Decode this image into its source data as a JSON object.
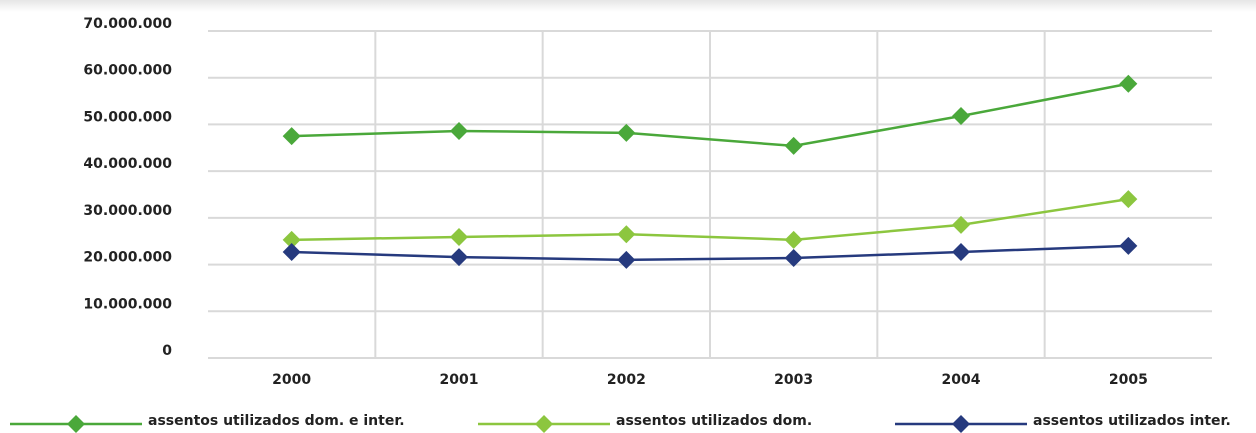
{
  "chart_data": {
    "type": "line",
    "categories": [
      "2000",
      "2001",
      "2002",
      "2003",
      "2004",
      "2005"
    ],
    "series": [
      {
        "name": "assentos utilizados dom. e inter.",
        "color": "#4aa83a",
        "values": [
          47500000,
          48600000,
          48200000,
          45400000,
          51800000,
          58700000
        ]
      },
      {
        "name": "assentos utilizados dom.",
        "color": "#8cc63f",
        "values": [
          25300000,
          25900000,
          26500000,
          25300000,
          28500000,
          34000000
        ]
      },
      {
        "name": "assentos utilizados inter.",
        "color": "#263a7e",
        "values": [
          22700000,
          21600000,
          21000000,
          21400000,
          22700000,
          24000000
        ]
      }
    ],
    "ylim": [
      0,
      70000000
    ],
    "yticks": [
      0,
      {
        "value": 10000000,
        "label": "10.000.000"
      },
      {
        "value": 20000000,
        "label": "20.000.000"
      },
      {
        "value": 30000000,
        "label": "30.000.000"
      },
      {
        "value": 40000000,
        "label": "40.000.000"
      },
      {
        "value": 50000000,
        "label": "50.000.000"
      },
      {
        "value": 60000000,
        "label": "60.000.000"
      },
      {
        "value": 70000000,
        "label": "70.000.000"
      }
    ],
    "grid": true
  }
}
